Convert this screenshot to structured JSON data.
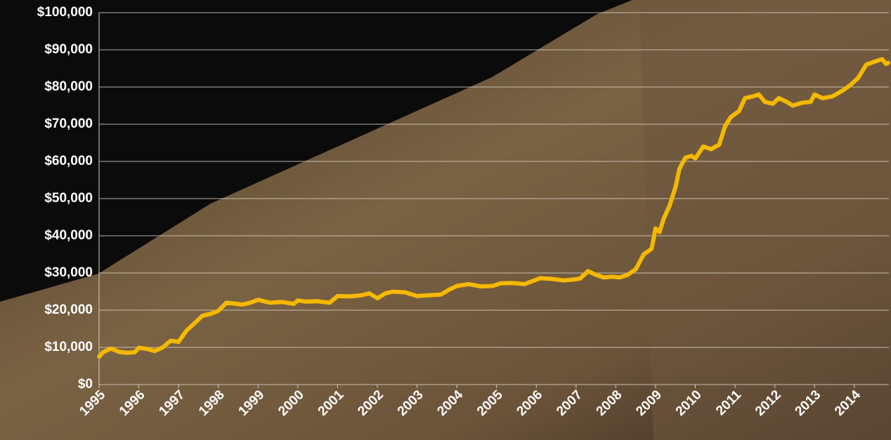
{
  "chart_data": {
    "type": "line",
    "x": [
      1995.0,
      1995.1,
      1995.3,
      1995.5,
      1995.7,
      1995.9,
      1996.0,
      1996.2,
      1996.4,
      1996.6,
      1996.8,
      1997.0,
      1997.2,
      1997.4,
      1997.6,
      1997.8,
      1998.0,
      1998.2,
      1998.4,
      1998.6,
      1998.8,
      1999.0,
      1999.3,
      1999.6,
      1999.9,
      2000.0,
      2000.2,
      2000.5,
      2000.8,
      2001.0,
      2001.3,
      2001.6,
      2001.8,
      2002.0,
      2002.2,
      2002.4,
      2002.7,
      2003.0,
      2003.3,
      2003.6,
      2003.8,
      2004.0,
      2004.3,
      2004.6,
      2004.9,
      2005.1,
      2005.4,
      2005.7,
      2005.9,
      2006.1,
      2006.4,
      2006.7,
      2006.9,
      2007.1,
      2007.3,
      2007.5,
      2007.7,
      2007.9,
      2008.1,
      2008.3,
      2008.5,
      2008.7,
      2008.9,
      2009.0,
      2009.1,
      2009.2,
      2009.35,
      2009.5,
      2009.6,
      2009.75,
      2009.9,
      2010.0,
      2010.2,
      2010.4,
      2010.6,
      2010.75,
      2010.9,
      2011.1,
      2011.25,
      2011.45,
      2011.6,
      2011.75,
      2011.95,
      2012.1,
      2012.3,
      2012.45,
      2012.7,
      2012.9,
      2013.0,
      2013.2,
      2013.45,
      2013.7,
      2013.9,
      2014.1,
      2014.3,
      2014.5,
      2014.7,
      2014.8,
      2014.85
    ],
    "series": [
      {
        "color": "#f5b800",
        "values": [
          7500,
          8700,
          9700,
          8800,
          8500,
          8700,
          9900,
          9600,
          9000,
          10000,
          11800,
          11500,
          14500,
          16500,
          18500,
          19000,
          19800,
          22000,
          21800,
          21500,
          22000,
          22800,
          22000,
          22200,
          21700,
          22600,
          22300,
          22400,
          22000,
          23800,
          23700,
          24000,
          24500,
          23200,
          24500,
          25000,
          24800,
          23800,
          24000,
          24200,
          25500,
          26500,
          27000,
          26400,
          26500,
          27200,
          27300,
          27000,
          27800,
          28600,
          28400,
          28000,
          28200,
          28500,
          30500,
          29500,
          28800,
          29000,
          28800,
          29500,
          31000,
          35000,
          36500,
          42000,
          41000,
          44500,
          48000,
          53000,
          58000,
          61000,
          61500,
          60800,
          64000,
          63300,
          64500,
          69500,
          72000,
          73500,
          77000,
          77500,
          78000,
          76000,
          75500,
          77000,
          76000,
          75000,
          75800,
          76000,
          78000,
          77000,
          77500,
          79000,
          80500,
          82500,
          86000,
          86800,
          87500,
          86200,
          86500
        ]
      }
    ],
    "xlim": [
      1995,
      2014.87
    ],
    "xticks": [
      1995,
      1996,
      1997,
      1998,
      1999,
      2000,
      2001,
      2002,
      2003,
      2004,
      2005,
      2006,
      2007,
      2008,
      2009,
      2010,
      2011,
      2012,
      2013,
      2014
    ],
    "ylim": [
      0,
      100000
    ],
    "yticks": [
      {
        "value": 0,
        "label": "$0"
      },
      {
        "value": 10000,
        "label": "$10,000"
      },
      {
        "value": 20000,
        "label": "$20,000"
      },
      {
        "value": 30000,
        "label": "$30,000"
      },
      {
        "value": 40000,
        "label": "$40,000"
      },
      {
        "value": 50000,
        "label": "$50,000"
      },
      {
        "value": 60000,
        "label": "$60,000"
      },
      {
        "value": 70000,
        "label": "$70,000"
      },
      {
        "value": 80000,
        "label": "$80,000"
      },
      {
        "value": 90000,
        "label": "$90,000"
      },
      {
        "value": 100000,
        "label": "$100,000"
      }
    ],
    "grid": true
  }
}
